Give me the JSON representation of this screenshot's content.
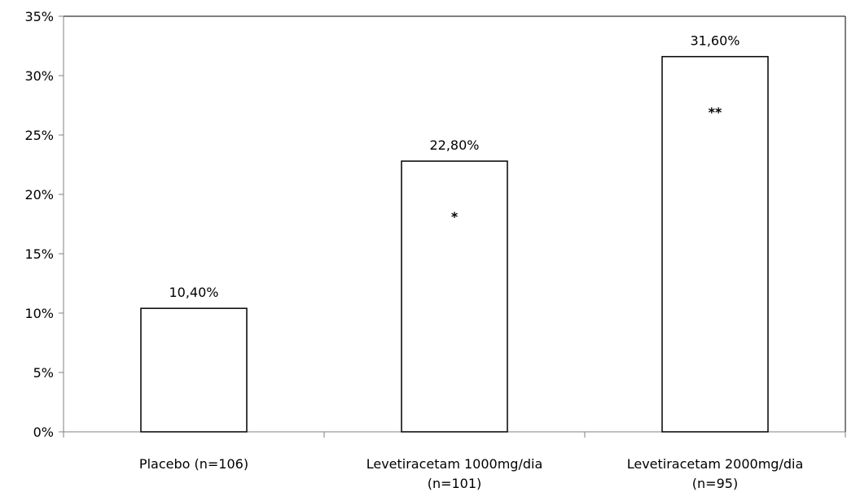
{
  "chart_data": {
    "type": "bar",
    "categories": [
      [
        "Placebo (n=106)"
      ],
      [
        "Levetiracetam 1000mg/dia",
        "(n=101)"
      ],
      [
        "Levetiracetam 2000mg/dia",
        "(n=95)"
      ]
    ],
    "values": [
      10.4,
      22.8,
      31.6
    ],
    "data_labels": [
      "10,40%",
      "22,80%",
      "31,60%"
    ],
    "significance_marks": [
      "",
      "*",
      "**"
    ],
    "ylim": [
      0,
      35
    ],
    "yticks": [
      0,
      5,
      10,
      15,
      20,
      25,
      30,
      35
    ],
    "ytick_labels": [
      "0%",
      "5%",
      "10%",
      "15%",
      "20%",
      "25%",
      "30%",
      "35%"
    ],
    "grid": false,
    "title": "",
    "xlabel": "",
    "ylabel": "",
    "colors": {
      "bar_fill": "#ffffff",
      "bar_stroke": "#000000",
      "axis": "#808080"
    }
  }
}
